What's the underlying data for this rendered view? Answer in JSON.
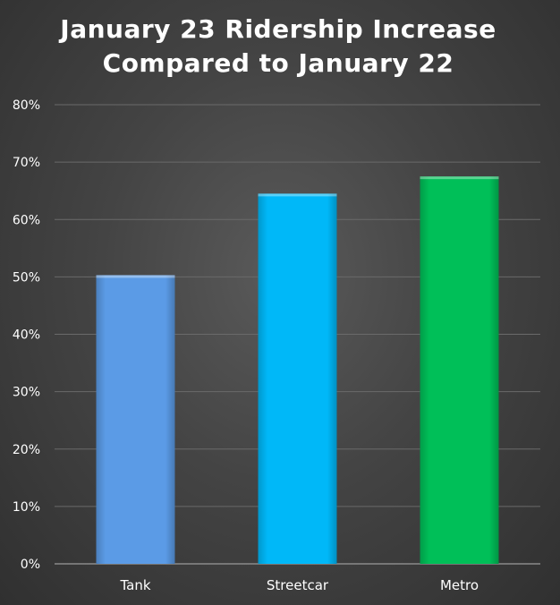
{
  "chart_data": {
    "type": "bar",
    "title_line1": "January 23 Ridership Increase",
    "title_line2": "Compared to January 22",
    "title": "January 23 Ridership Increase Compared to January 22",
    "xlabel": "",
    "ylabel": "",
    "categories": [
      "Tank",
      "Streetcar",
      "Metro"
    ],
    "values": [
      50.3,
      64.5,
      67.5
    ],
    "colors": [
      "#5b9be6",
      "#00b8f8",
      "#00bf58"
    ],
    "ylim": [
      0,
      80
    ],
    "yticks": [
      0,
      10,
      20,
      30,
      40,
      50,
      60,
      70,
      80
    ],
    "ytick_labels": [
      "0%",
      "10%",
      "20%",
      "30%",
      "40%",
      "50%",
      "60%",
      "70%",
      "80%"
    ],
    "grid": true,
    "legend": "none"
  }
}
